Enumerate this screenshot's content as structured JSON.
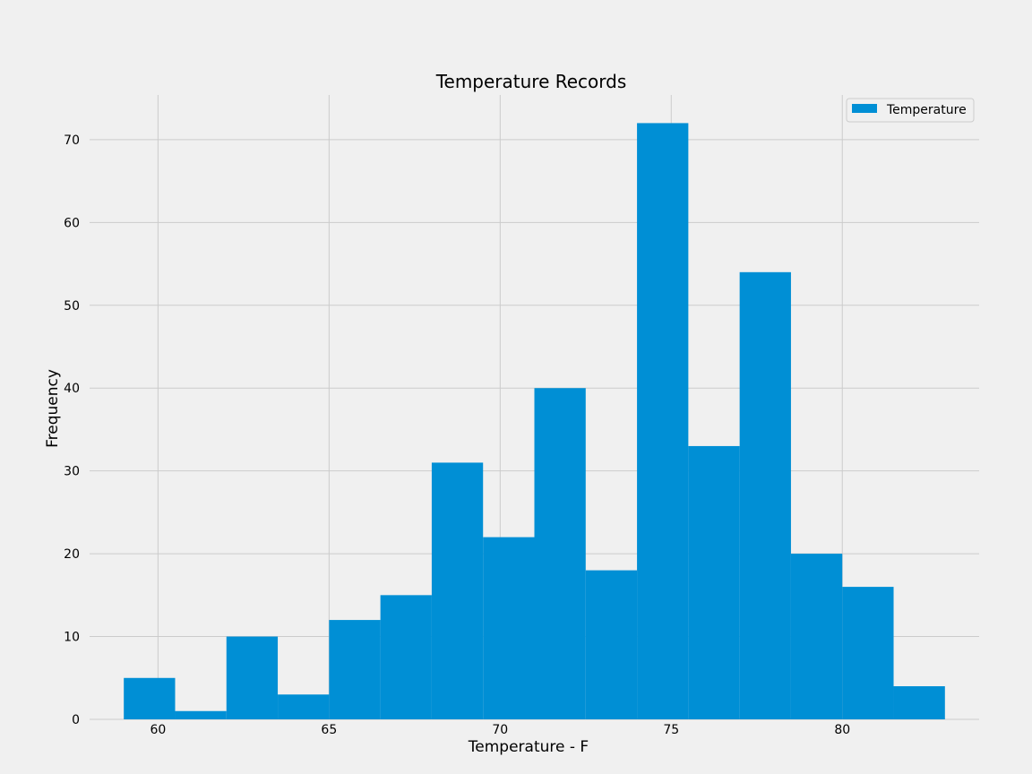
{
  "chart_data": {
    "type": "bar",
    "title": "Temperature Records",
    "xlabel": "Temperature - F",
    "ylabel": "Frequency",
    "bin_edges": [
      59.0,
      60.5,
      62.0,
      63.5,
      65.0,
      66.5,
      68.0,
      69.5,
      71.0,
      72.5,
      74.0,
      75.5,
      77.0,
      78.5,
      80.0,
      81.5,
      83.0
    ],
    "values": [
      5,
      1,
      10,
      3,
      12,
      15,
      31,
      22,
      40,
      18,
      72,
      33,
      54,
      20,
      16,
      4
    ],
    "series": [
      {
        "name": "Temperature",
        "color": "#008fd5"
      }
    ],
    "xlim": [
      58.0,
      84.0
    ],
    "ylim": [
      0,
      75.4
    ],
    "xticks": [
      60,
      65,
      70,
      75,
      80
    ],
    "yticks": [
      0,
      10,
      20,
      30,
      40,
      50,
      60,
      70
    ],
    "grid": true,
    "legend_position": "top-right",
    "background": "#f0f0f0",
    "grid_color": "#cbcbcb"
  }
}
